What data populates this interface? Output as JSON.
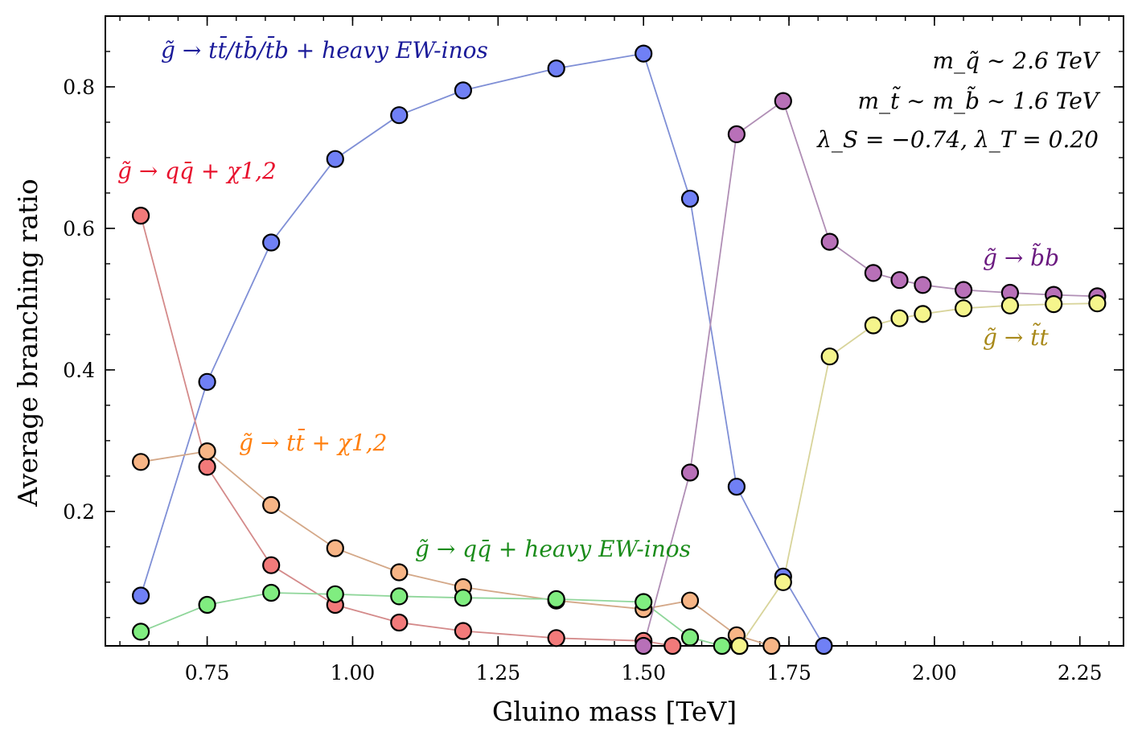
{
  "chart_data": {
    "type": "line",
    "xlabel": "Gluino mass [TeV]",
    "ylabel": "Average branching ratio",
    "xlim": [
      0.575,
      2.325
    ],
    "ylim": [
      0.01,
      0.9
    ],
    "x_ticks": [
      {
        "value": 0.75,
        "label": "0.75"
      },
      {
        "value": 1.0,
        "label": "1.00"
      },
      {
        "value": 1.25,
        "label": "1.25"
      },
      {
        "value": 1.5,
        "label": "1.50"
      },
      {
        "value": 1.75,
        "label": "1.75"
      },
      {
        "value": 2.0,
        "label": "2.00"
      },
      {
        "value": 2.25,
        "label": "2.25"
      }
    ],
    "y_ticks": [
      {
        "value": 0.2,
        "label": "0.2"
      },
      {
        "value": 0.4,
        "label": "0.4"
      },
      {
        "value": 0.6,
        "label": "0.6"
      },
      {
        "value": 0.8,
        "label": "0.8"
      }
    ],
    "series": [
      {
        "name": "g̃ → tt̄/tb̄/t̄b + heavy EW-inos",
        "line_color": "#7f8fd6",
        "marker_color": "#7080f5",
        "label_color": "#1a1a99",
        "points": [
          [
            0.636,
            0.081
          ],
          [
            0.75,
            0.383
          ],
          [
            0.86,
            0.58
          ],
          [
            0.97,
            0.698
          ],
          [
            1.08,
            0.76
          ],
          [
            1.19,
            0.795
          ],
          [
            1.35,
            0.826
          ],
          [
            1.5,
            0.847
          ],
          [
            1.58,
            0.642
          ],
          [
            1.66,
            0.235
          ],
          [
            1.74,
            0.108
          ],
          [
            1.81,
            0.01
          ]
        ]
      },
      {
        "name": "g̃ → qq̄ + χ1,2",
        "line_color": "#d48a8a",
        "marker_color": "#f27a7a",
        "label_color": "#e8112d",
        "points": [
          [
            0.636,
            0.618
          ],
          [
            0.75,
            0.263
          ],
          [
            0.86,
            0.124
          ],
          [
            0.97,
            0.068
          ],
          [
            1.08,
            0.043
          ],
          [
            1.19,
            0.031
          ],
          [
            1.35,
            0.021
          ],
          [
            1.5,
            0.017
          ],
          [
            1.55,
            0.01
          ]
        ]
      },
      {
        "name": "g̃ → tt̄ + χ1,2",
        "line_color": "#d4a888",
        "marker_color": "#f7b586",
        "label_color": "#ff7f0e",
        "points": [
          [
            0.636,
            0.27
          ],
          [
            0.75,
            0.285
          ],
          [
            0.86,
            0.209
          ],
          [
            0.97,
            0.148
          ],
          [
            1.08,
            0.114
          ],
          [
            1.19,
            0.093
          ],
          [
            1.35,
            0.074
          ],
          [
            1.5,
            0.062
          ],
          [
            1.58,
            0.074
          ],
          [
            1.66,
            0.025
          ],
          [
            1.72,
            0.01
          ]
        ]
      },
      {
        "name": "g̃ → qq̄ + heavy EW-inos",
        "line_color": "#8fd69a",
        "marker_color": "#80ed80",
        "label_color": "#1a8c1a",
        "points": [
          [
            0.636,
            0.03
          ],
          [
            0.75,
            0.068
          ],
          [
            0.86,
            0.085
          ],
          [
            0.97,
            0.083
          ],
          [
            1.08,
            0.08
          ],
          [
            1.19,
            0.078
          ],
          [
            1.35,
            0.076
          ],
          [
            1.5,
            0.072
          ],
          [
            1.58,
            0.022
          ],
          [
            1.635,
            0.01
          ],
          [
            1.665,
            0.01
          ]
        ]
      },
      {
        "name": "g̃ → b̃b",
        "line_color": "#b08eb5",
        "marker_color": "#b870b8",
        "label_color": "#6b1a80",
        "points": [
          [
            1.5,
            0.01
          ],
          [
            1.58,
            0.255
          ],
          [
            1.66,
            0.733
          ],
          [
            1.74,
            0.78
          ],
          [
            1.82,
            0.581
          ],
          [
            1.895,
            0.537
          ],
          [
            1.94,
            0.527
          ],
          [
            1.98,
            0.52
          ],
          [
            2.05,
            0.513
          ],
          [
            2.13,
            0.509
          ],
          [
            2.205,
            0.506
          ],
          [
            2.28,
            0.504
          ]
        ]
      },
      {
        "name": "g̃ → t̃t",
        "line_color": "#d8d49a",
        "marker_color": "#f5f58c",
        "label_color": "#a8891a",
        "points": [
          [
            1.665,
            0.01
          ],
          [
            1.74,
            0.1
          ],
          [
            1.82,
            0.419
          ],
          [
            1.895,
            0.463
          ],
          [
            1.94,
            0.473
          ],
          [
            1.98,
            0.479
          ],
          [
            2.05,
            0.487
          ],
          [
            2.13,
            0.491
          ],
          [
            2.205,
            0.493
          ],
          [
            2.28,
            0.494
          ]
        ]
      }
    ],
    "annotations": [
      {
        "text": "g̃ → tt̄/tb̄/t̄b + heavy EW-inos",
        "color": "#1a1a99"
      },
      {
        "text": "g̃ → qq̄ + χ1,2",
        "color": "#e8112d"
      },
      {
        "text": "g̃ → tt̄ + χ1,2",
        "color": "#ff7f0e"
      },
      {
        "text": "g̃ → qq̄ + heavy EW-inos",
        "color": "#1a8c1a"
      },
      {
        "text": "g̃ → b̃b",
        "color": "#6b1a80"
      },
      {
        "text": "g̃ → t̃t",
        "color": "#a8891a"
      }
    ],
    "params_text": [
      "m_q̃ ∼ 2.6 TeV",
      "m_t̃ ∼ m_b̃ ∼ 1.6 TeV",
      "λ_S = −0.74, λ_T = 0.20"
    ]
  }
}
